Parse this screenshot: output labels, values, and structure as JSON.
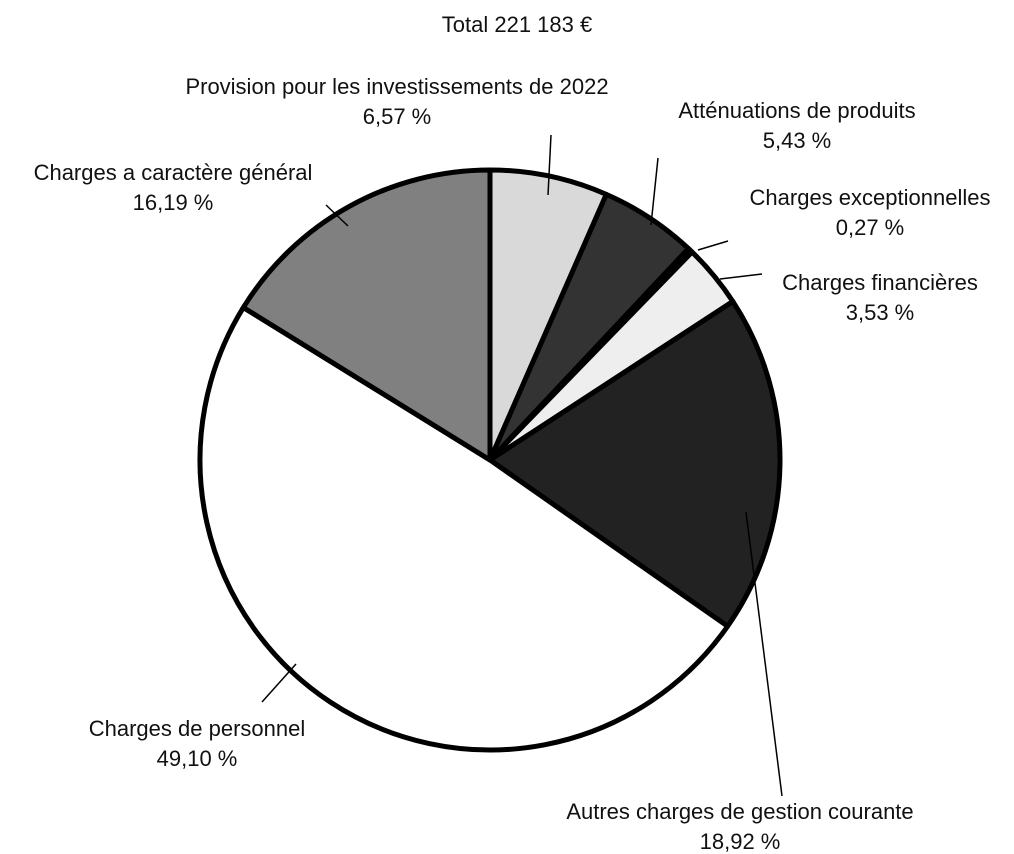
{
  "chart_data": {
    "type": "pie",
    "title": "Total 221 183 €",
    "categories": [
      "Provision pour les investissements de 2022",
      "Atténuations de produits",
      "Charges exceptionnelles",
      "Charges financières",
      "Autres charges de gestion courante",
      "Charges de personnel",
      "Charges a caractère général"
    ],
    "values": [
      6.57,
      5.43,
      0.27,
      3.53,
      18.92,
      49.1,
      16.19
    ],
    "value_labels": [
      "6,57 %",
      "5,43 %",
      "0,27 %",
      "3,53 %",
      "18,92 %",
      "49,10 %",
      "16,19 %"
    ],
    "colors": [
      "#d9d9d9",
      "#333333",
      "#000000",
      "#eeeeee",
      "#222222",
      "#ffffff",
      "#808080"
    ]
  }
}
